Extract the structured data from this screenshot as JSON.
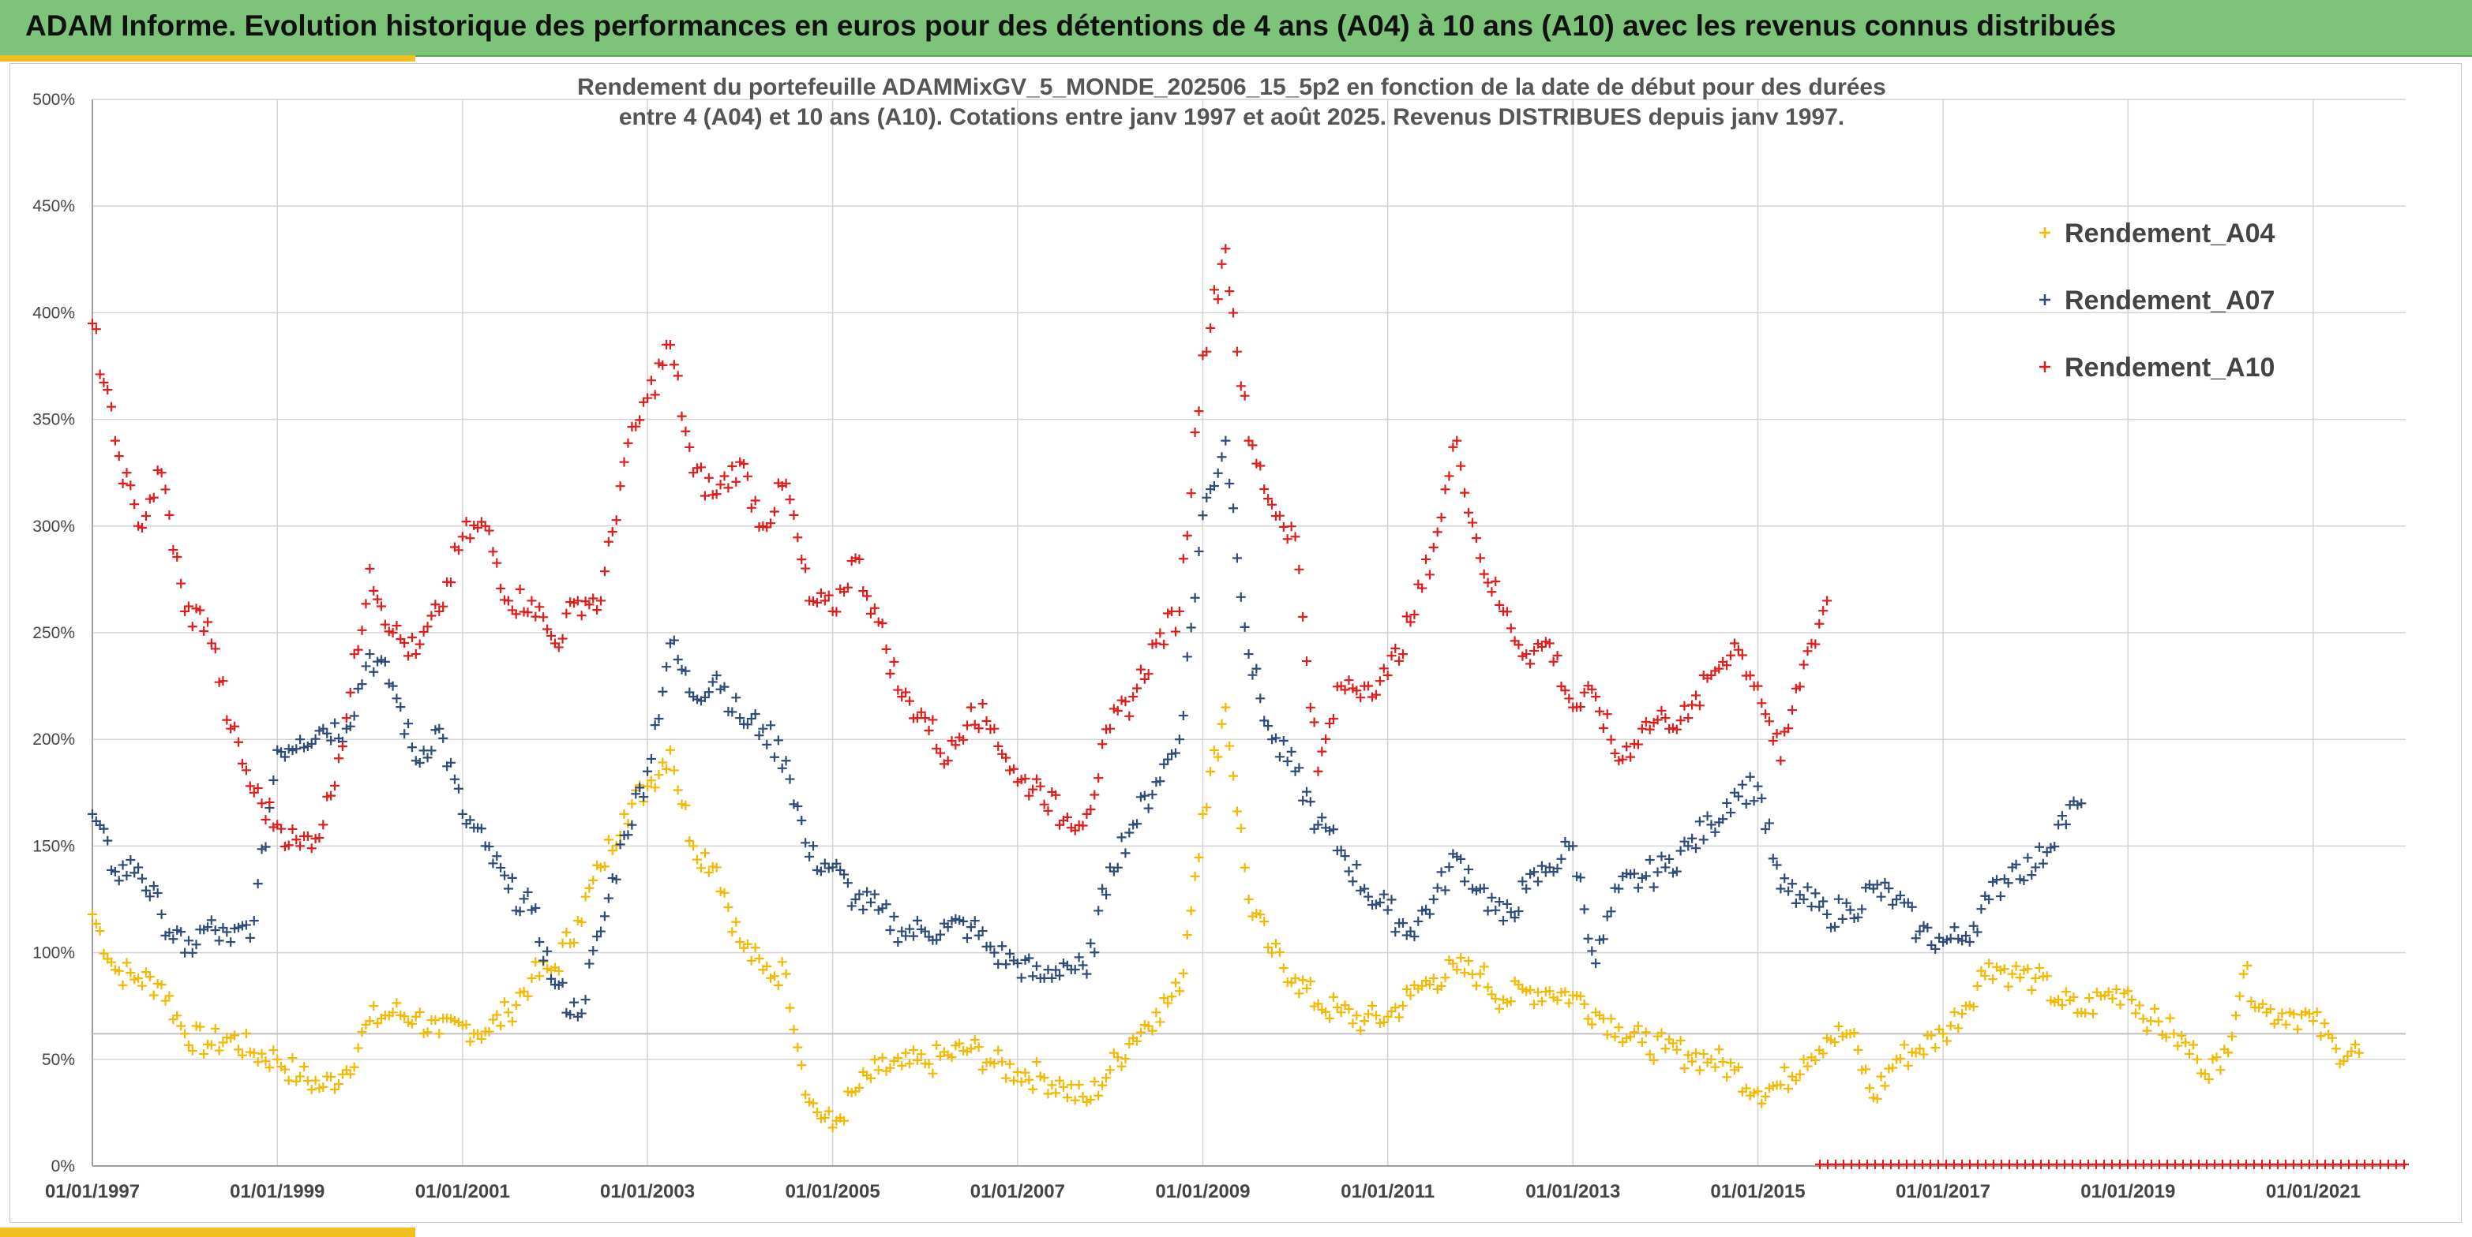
{
  "banner": {
    "title": "ADAM Informe. Evolution historique des performances en euros pour des détentions de 4 ans (A04) à 10 ans (A10) avec les revenus connus distribués"
  },
  "colors": {
    "banner_bg": "#7dc37a",
    "accent": "#f0c020",
    "A04": "#f5b800",
    "A07": "#2e4a78",
    "A10": "#e01b1b",
    "grid": "#d4d4d4",
    "threshold": "#c0c0c0"
  },
  "chart_data": {
    "type": "scatter",
    "title_line1": "Rendement du portefeuille ADAMMixGV_5_MONDE_202506_15_5p2  en fonction de la date de début pour des durées",
    "title_line2": "entre 4 (A04) et 10 ans (A10). Cotations entre janv 1997 et août 2025. Revenus DISTRIBUES depuis janv 1997.",
    "marker": "+",
    "y_unit": "%",
    "ylim": [
      0,
      500
    ],
    "yticks": [
      0,
      50,
      100,
      150,
      200,
      250,
      300,
      350,
      400,
      450,
      500
    ],
    "ytick_labels": [
      "0%",
      "50%",
      "100%",
      "150%",
      "200%",
      "250%",
      "300%",
      "350%",
      "400%",
      "450%",
      "500%"
    ],
    "xlim": [
      "1997-01-01",
      "2022-01-01"
    ],
    "xticks": [
      "1997-01-01",
      "1999-01-01",
      "2001-01-01",
      "2003-01-01",
      "2005-01-01",
      "2007-01-01",
      "2009-01-01",
      "2011-01-01",
      "2013-01-01",
      "2015-01-01",
      "2017-01-01",
      "2019-01-01",
      "2021-01-01"
    ],
    "xtick_labels": [
      "01/01/1997",
      "01/01/1999",
      "01/01/2001",
      "01/01/2003",
      "01/01/2005",
      "01/01/2007",
      "01/01/2009",
      "01/01/2011",
      "01/01/2013",
      "01/01/2015",
      "01/01/2017",
      "01/01/2019",
      "01/01/2021"
    ],
    "reference_line": 62,
    "grid": true,
    "legend_position": "top-right",
    "series": [
      {
        "name": "Rendement_A04",
        "color": "#f5b800",
        "points": [
          [
            "1997-01-01",
            118
          ],
          [
            "1997-04-01",
            92
          ],
          [
            "1997-07-01",
            88
          ],
          [
            "1997-10-01",
            85
          ],
          [
            "1998-01-01",
            62
          ],
          [
            "1998-04-01",
            57
          ],
          [
            "1998-07-01",
            60
          ],
          [
            "1998-10-01",
            53
          ],
          [
            "1999-01-01",
            50
          ],
          [
            "1999-04-01",
            42
          ],
          [
            "1999-07-01",
            37
          ],
          [
            "1999-10-01",
            45
          ],
          [
            "2000-01-01",
            68
          ],
          [
            "2000-04-01",
            72
          ],
          [
            "2000-07-01",
            70
          ],
          [
            "2000-10-01",
            62
          ],
          [
            "2001-01-01",
            66
          ],
          [
            "2001-04-01",
            63
          ],
          [
            "2001-07-01",
            72
          ],
          [
            "2001-10-01",
            88
          ],
          [
            "2002-01-01",
            93
          ],
          [
            "2002-04-01",
            115
          ],
          [
            "2002-07-01",
            140
          ],
          [
            "2002-10-01",
            165
          ],
          [
            "2003-01-01",
            178
          ],
          [
            "2003-04-01",
            195
          ],
          [
            "2003-07-01",
            150
          ],
          [
            "2003-10-01",
            140
          ],
          [
            "2004-01-01",
            105
          ],
          [
            "2004-04-01",
            92
          ],
          [
            "2004-07-01",
            90
          ],
          [
            "2004-10-01",
            30
          ],
          [
            "2005-01-01",
            18
          ],
          [
            "2005-04-01",
            35
          ],
          [
            "2005-07-01",
            45
          ],
          [
            "2005-10-01",
            47
          ],
          [
            "2006-01-01",
            48
          ],
          [
            "2006-04-01",
            52
          ],
          [
            "2006-07-01",
            55
          ],
          [
            "2006-10-01",
            48
          ],
          [
            "2007-01-01",
            44
          ],
          [
            "2007-04-01",
            42
          ],
          [
            "2007-07-01",
            37
          ],
          [
            "2007-10-01",
            30
          ],
          [
            "2008-01-01",
            45
          ],
          [
            "2008-04-01",
            60
          ],
          [
            "2008-07-01",
            72
          ],
          [
            "2008-10-01",
            82
          ],
          [
            "2009-01-01",
            165
          ],
          [
            "2009-04-01",
            215
          ],
          [
            "2009-07-01",
            125
          ],
          [
            "2009-10-01",
            100
          ],
          [
            "2010-01-01",
            88
          ],
          [
            "2010-04-01",
            76
          ],
          [
            "2010-07-01",
            72
          ],
          [
            "2010-10-01",
            68
          ],
          [
            "2011-01-01",
            70
          ],
          [
            "2011-04-01",
            80
          ],
          [
            "2011-07-01",
            88
          ],
          [
            "2011-10-01",
            92
          ],
          [
            "2012-01-01",
            90
          ],
          [
            "2012-04-01",
            78
          ],
          [
            "2012-07-01",
            82
          ],
          [
            "2012-10-01",
            82
          ],
          [
            "2013-01-01",
            80
          ],
          [
            "2013-04-01",
            72
          ],
          [
            "2013-07-01",
            65
          ],
          [
            "2013-10-01",
            58
          ],
          [
            "2014-01-01",
            55
          ],
          [
            "2014-04-01",
            52
          ],
          [
            "2014-07-01",
            50
          ],
          [
            "2014-10-01",
            45
          ],
          [
            "2015-01-01",
            35
          ],
          [
            "2015-04-01",
            38
          ],
          [
            "2015-07-01",
            50
          ],
          [
            "2015-10-01",
            60
          ],
          [
            "2016-01-01",
            62
          ],
          [
            "2016-04-01",
            32
          ],
          [
            "2016-07-01",
            50
          ],
          [
            "2016-10-01",
            55
          ],
          [
            "2017-01-01",
            62
          ],
          [
            "2017-04-01",
            75
          ],
          [
            "2017-07-01",
            95
          ],
          [
            "2017-10-01",
            90
          ],
          [
            "2018-01-01",
            88
          ],
          [
            "2018-04-01",
            78
          ],
          [
            "2018-07-01",
            72
          ],
          [
            "2018-10-01",
            80
          ],
          [
            "2019-01-01",
            82
          ],
          [
            "2019-04-01",
            68
          ],
          [
            "2019-07-01",
            62
          ],
          [
            "2019-10-01",
            50
          ],
          [
            "2020-01-01",
            45
          ],
          [
            "2020-04-01",
            90
          ],
          [
            "2020-07-01",
            72
          ],
          [
            "2020-10-01",
            72
          ],
          [
            "2021-01-01",
            68
          ],
          [
            "2021-04-01",
            55
          ],
          [
            "2021-07-01",
            53
          ]
        ]
      },
      {
        "name": "Rendement_A07",
        "color": "#2e4a78",
        "points": [
          [
            "1997-01-01",
            165
          ],
          [
            "1997-04-01",
            138
          ],
          [
            "1997-07-01",
            140
          ],
          [
            "1997-10-01",
            118
          ],
          [
            "1998-01-01",
            100
          ],
          [
            "1998-04-01",
            112
          ],
          [
            "1998-07-01",
            105
          ],
          [
            "1998-10-01",
            115
          ],
          [
            "1999-01-01",
            195
          ],
          [
            "1999-04-01",
            200
          ],
          [
            "1999-07-01",
            205
          ],
          [
            "1999-10-01",
            205
          ],
          [
            "2000-01-01",
            240
          ],
          [
            "2000-04-01",
            225
          ],
          [
            "2000-07-01",
            190
          ],
          [
            "2000-10-01",
            205
          ],
          [
            "2001-01-01",
            165
          ],
          [
            "2001-04-01",
            150
          ],
          [
            "2001-07-01",
            130
          ],
          [
            "2001-10-01",
            120
          ],
          [
            "2002-01-01",
            85
          ],
          [
            "2002-04-01",
            70
          ],
          [
            "2002-07-01",
            110
          ],
          [
            "2002-10-01",
            155
          ],
          [
            "2003-01-01",
            185
          ],
          [
            "2003-04-01",
            245
          ],
          [
            "2003-07-01",
            220
          ],
          [
            "2003-10-01",
            230
          ],
          [
            "2004-01-01",
            210
          ],
          [
            "2004-04-01",
            205
          ],
          [
            "2004-07-01",
            190
          ],
          [
            "2004-10-01",
            145
          ],
          [
            "2005-01-01",
            140
          ],
          [
            "2005-04-01",
            125
          ],
          [
            "2005-07-01",
            120
          ],
          [
            "2005-10-01",
            110
          ],
          [
            "2006-01-01",
            110
          ],
          [
            "2006-04-01",
            112
          ],
          [
            "2006-07-01",
            112
          ],
          [
            "2006-10-01",
            100
          ],
          [
            "2007-01-01",
            95
          ],
          [
            "2007-04-01",
            88
          ],
          [
            "2007-07-01",
            95
          ],
          [
            "2007-10-01",
            90
          ],
          [
            "2008-01-01",
            140
          ],
          [
            "2008-04-01",
            160
          ],
          [
            "2008-07-01",
            180
          ],
          [
            "2008-10-01",
            200
          ],
          [
            "2009-01-01",
            305
          ],
          [
            "2009-04-01",
            340
          ],
          [
            "2009-07-01",
            240
          ],
          [
            "2009-10-01",
            200
          ],
          [
            "2010-01-01",
            185
          ],
          [
            "2010-04-01",
            160
          ],
          [
            "2010-07-01",
            148
          ],
          [
            "2010-10-01",
            130
          ],
          [
            "2011-01-01",
            120
          ],
          [
            "2011-04-01",
            110
          ],
          [
            "2011-07-01",
            125
          ],
          [
            "2011-10-01",
            145
          ],
          [
            "2012-01-01",
            130
          ],
          [
            "2012-04-01",
            115
          ],
          [
            "2012-07-01",
            130
          ],
          [
            "2012-10-01",
            140
          ],
          [
            "2013-01-01",
            150
          ],
          [
            "2013-04-01",
            95
          ],
          [
            "2013-07-01",
            130
          ],
          [
            "2013-10-01",
            135
          ],
          [
            "2014-01-01",
            140
          ],
          [
            "2014-04-01",
            150
          ],
          [
            "2014-07-01",
            160
          ],
          [
            "2014-10-01",
            175
          ],
          [
            "2015-01-01",
            178
          ],
          [
            "2015-04-01",
            130
          ],
          [
            "2015-07-01",
            125
          ],
          [
            "2015-10-01",
            118
          ],
          [
            "2016-01-01",
            120
          ],
          [
            "2016-04-01",
            130
          ],
          [
            "2016-07-01",
            125
          ],
          [
            "2016-10-01",
            110
          ],
          [
            "2017-01-01",
            105
          ],
          [
            "2017-04-01",
            108
          ],
          [
            "2017-07-01",
            125
          ],
          [
            "2017-10-01",
            140
          ],
          [
            "2018-01-01",
            140
          ],
          [
            "2018-04-01",
            160
          ],
          [
            "2018-07-01",
            170
          ]
        ]
      },
      {
        "name": "Rendement_A10",
        "color": "#e01b1b",
        "points": [
          [
            "1997-01-01",
            395
          ],
          [
            "1997-04-01",
            340
          ],
          [
            "1997-07-01",
            300
          ],
          [
            "1997-10-01",
            325
          ],
          [
            "1998-01-01",
            260
          ],
          [
            "1998-04-01",
            255
          ],
          [
            "1998-07-01",
            205
          ],
          [
            "1998-10-01",
            175
          ],
          [
            "1999-01-01",
            160
          ],
          [
            "1999-04-01",
            150
          ],
          [
            "1999-07-01",
            160
          ],
          [
            "1999-10-01",
            210
          ],
          [
            "2000-01-01",
            280
          ],
          [
            "2000-04-01",
            250
          ],
          [
            "2000-07-01",
            240
          ],
          [
            "2000-10-01",
            260
          ],
          [
            "2001-01-01",
            295
          ],
          [
            "2001-04-01",
            300
          ],
          [
            "2001-07-01",
            265
          ],
          [
            "2001-10-01",
            265
          ],
          [
            "2002-01-01",
            245
          ],
          [
            "2002-04-01",
            265
          ],
          [
            "2002-07-01",
            265
          ],
          [
            "2002-10-01",
            330
          ],
          [
            "2003-01-01",
            360
          ],
          [
            "2003-04-01",
            385
          ],
          [
            "2003-07-01",
            325
          ],
          [
            "2003-10-01",
            315
          ],
          [
            "2004-01-01",
            330
          ],
          [
            "2004-04-01",
            300
          ],
          [
            "2004-07-01",
            320
          ],
          [
            "2004-10-01",
            265
          ],
          [
            "2005-01-01",
            260
          ],
          [
            "2005-04-01",
            285
          ],
          [
            "2005-07-01",
            255
          ],
          [
            "2005-10-01",
            220
          ],
          [
            "2006-01-01",
            210
          ],
          [
            "2006-04-01",
            190
          ],
          [
            "2006-07-01",
            215
          ],
          [
            "2006-10-01",
            205
          ],
          [
            "2007-01-01",
            180
          ],
          [
            "2007-04-01",
            178
          ],
          [
            "2007-07-01",
            162
          ],
          [
            "2007-10-01",
            165
          ],
          [
            "2008-01-01",
            205
          ],
          [
            "2008-04-01",
            220
          ],
          [
            "2008-07-01",
            245
          ],
          [
            "2008-10-01",
            260
          ],
          [
            "2009-01-01",
            380
          ],
          [
            "2009-04-01",
            430
          ],
          [
            "2009-07-01",
            340
          ],
          [
            "2009-10-01",
            310
          ],
          [
            "2010-01-01",
            295
          ],
          [
            "2010-04-01",
            185
          ],
          [
            "2010-07-01",
            225
          ],
          [
            "2010-10-01",
            225
          ],
          [
            "2011-01-01",
            230
          ],
          [
            "2011-04-01",
            255
          ],
          [
            "2011-07-01",
            290
          ],
          [
            "2011-10-01",
            340
          ],
          [
            "2012-01-01",
            285
          ],
          [
            "2012-04-01",
            260
          ],
          [
            "2012-07-01",
            240
          ],
          [
            "2012-10-01",
            245
          ],
          [
            "2013-01-01",
            215
          ],
          [
            "2013-04-01",
            220
          ],
          [
            "2013-07-01",
            190
          ],
          [
            "2013-10-01",
            205
          ],
          [
            "2014-01-01",
            210
          ],
          [
            "2014-04-01",
            210
          ],
          [
            "2014-07-01",
            230
          ],
          [
            "2014-10-01",
            245
          ],
          [
            "2015-01-01",
            225
          ],
          [
            "2015-04-01",
            190
          ],
          [
            "2015-07-01",
            235
          ],
          [
            "2015-10-01",
            265
          ]
        ]
      }
    ]
  }
}
